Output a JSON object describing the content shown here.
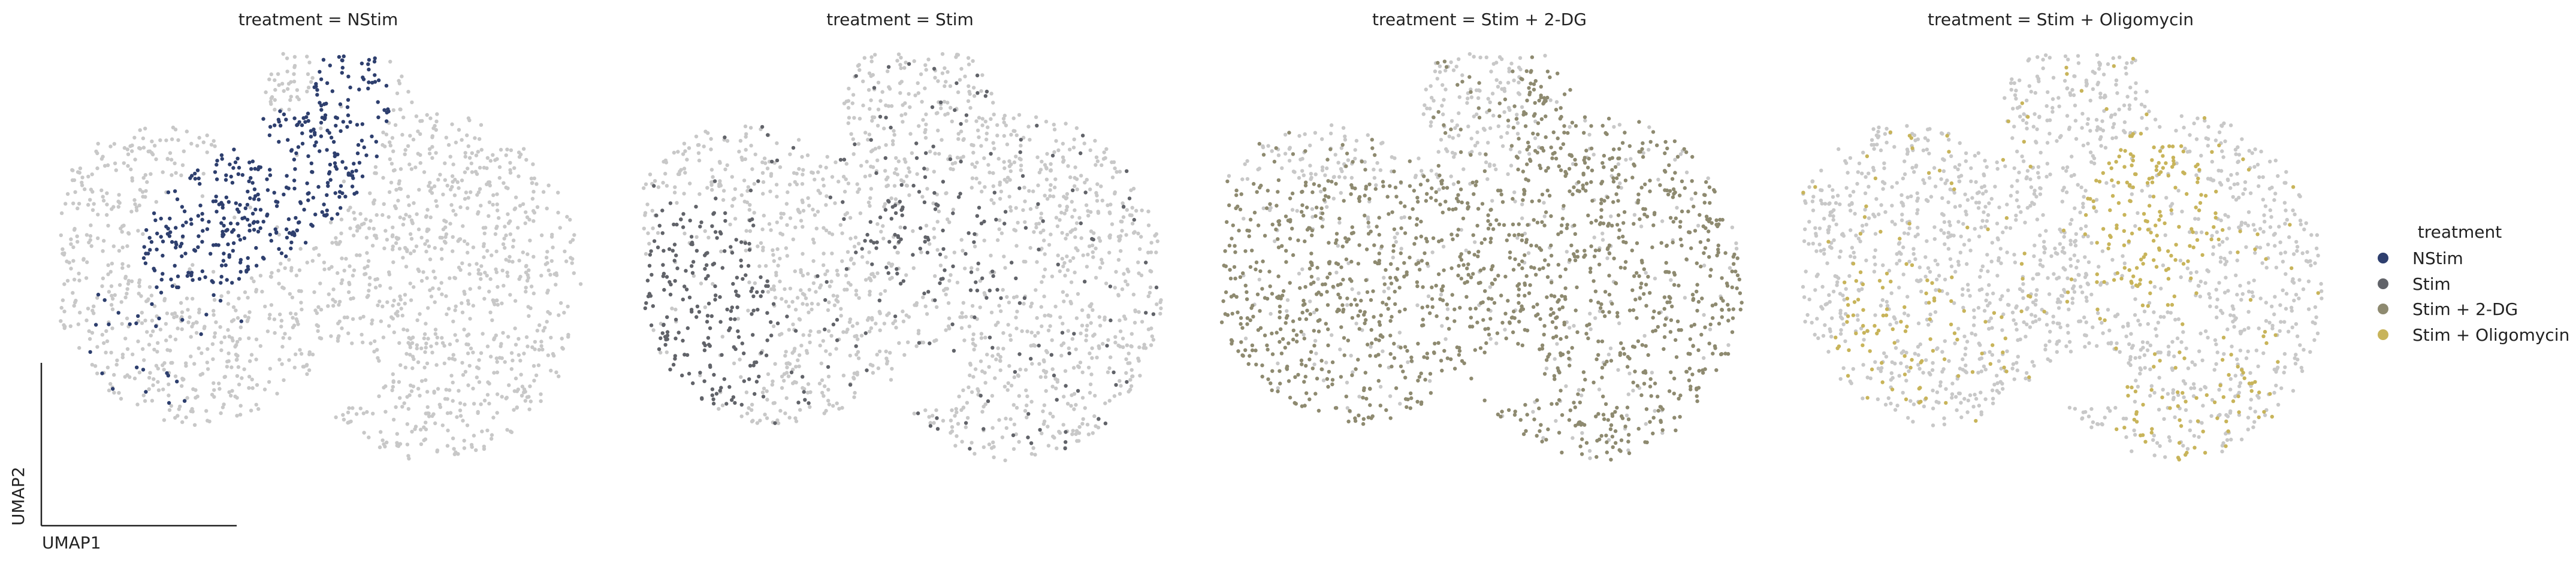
{
  "chart_data": {
    "type": "scatter",
    "embedding": "UMAP",
    "xlabel": "UMAP1",
    "ylabel": "UMAP2",
    "facet_variable": "treatment",
    "background_color": "#c8c8c8",
    "panels": [
      {
        "title": "treatment = NStim",
        "highlight": "NStim",
        "color": "#2e3f6e"
      },
      {
        "title": "treatment = Stim",
        "highlight": "Stim",
        "color": "#616369"
      },
      {
        "title": "treatment = Stim + 2-DG",
        "highlight": "Stim + 2-DG",
        "color": "#8e8a70"
      },
      {
        "title": "treatment = Stim + Oligomycin",
        "highlight": "Stim + Oligomycin",
        "color": "#c8b45a"
      }
    ],
    "legend": {
      "title": "treatment",
      "placement": "right",
      "entries": [
        {
          "label": "NStim",
          "color": "#2e3f6e"
        },
        {
          "label": "Stim",
          "color": "#616369"
        },
        {
          "label": "Stim + 2-DG",
          "color": "#8e8a70"
        },
        {
          "label": "Stim + Oligomycin",
          "color": "#c8b45a"
        }
      ]
    }
  }
}
